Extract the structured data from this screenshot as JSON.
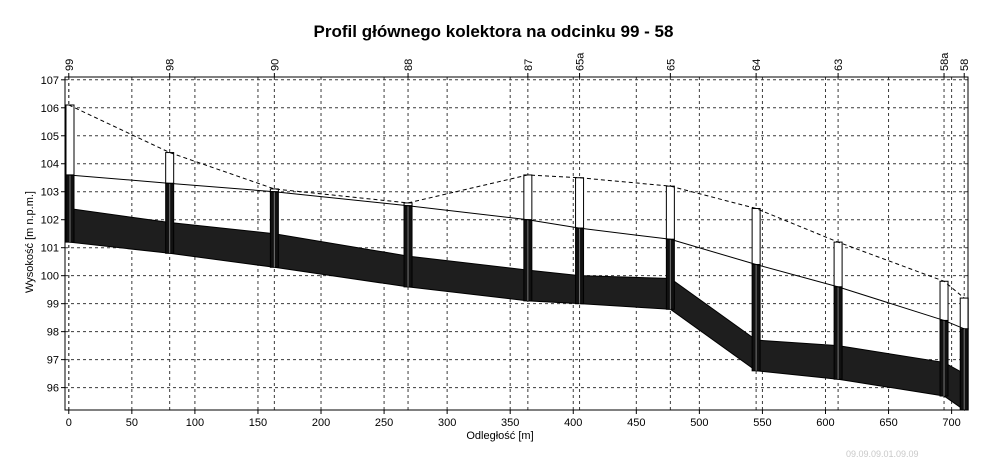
{
  "chart_data": {
    "type": "line",
    "title": "Profil głównego kolektora na odcinku 99 - 58",
    "xlabel": "Odległość [m]",
    "ylabel": "Wysokość [m n.p.m.]",
    "xlim": [
      -3,
      713
    ],
    "ylim": [
      95.2,
      107.1
    ],
    "x_ticks": [
      0,
      50,
      100,
      150,
      200,
      250,
      300,
      350,
      400,
      450,
      500,
      550,
      600,
      650,
      700
    ],
    "y_ticks": [
      96,
      97,
      98,
      99,
      100,
      101,
      102,
      103,
      104,
      105,
      106,
      107
    ],
    "grid": true,
    "wells": [
      {
        "name": "99",
        "x": 0,
        "top": 106.1
      },
      {
        "name": "98",
        "x": 80,
        "top": 104.4
      },
      {
        "name": "90",
        "x": 163,
        "top": 103.1
      },
      {
        "name": "88",
        "x": 269,
        "top": 102.6
      },
      {
        "name": "87",
        "x": 364,
        "top": 103.6
      },
      {
        "name": "65a",
        "x": 405,
        "top": 103.5
      },
      {
        "name": "65",
        "x": 477,
        "top": 103.2
      },
      {
        "name": "64",
        "x": 545,
        "top": 102.4
      },
      {
        "name": "63",
        "x": 610,
        "top": 101.2
      },
      {
        "name": "58a",
        "x": 694,
        "top": 99.8
      },
      {
        "name": "58",
        "x": 710,
        "top": 99.2
      }
    ],
    "series": [
      {
        "name": "",
        "style": "dashed",
        "x": [
          0,
          80,
          163,
          269,
          364,
          405,
          477,
          545,
          610,
          694,
          710
        ],
        "values": [
          106.1,
          104.4,
          103.1,
          102.6,
          103.6,
          103.5,
          103.2,
          102.4,
          101.2,
          99.8,
          99.2
        ]
      },
      {
        "name": "",
        "style": "solid",
        "x": [
          0,
          80,
          163,
          269,
          364,
          405,
          477,
          545,
          610,
          694,
          710
        ],
        "values": [
          103.6,
          103.3,
          103.0,
          102.5,
          102.0,
          101.7,
          101.3,
          100.4,
          99.6,
          98.4,
          98.1
        ]
      },
      {
        "name": "",
        "style": "band_top",
        "x": [
          0,
          80,
          163,
          269,
          364,
          405,
          477,
          545,
          610,
          694,
          710
        ],
        "values": [
          102.4,
          101.9,
          101.5,
          100.7,
          100.2,
          100.0,
          99.9,
          97.7,
          97.5,
          96.9,
          96.5
        ]
      },
      {
        "name": "",
        "style": "band_bottom",
        "x": [
          0,
          80,
          163,
          269,
          364,
          405,
          477,
          545,
          610,
          694,
          710
        ],
        "values": [
          101.2,
          100.8,
          100.3,
          99.6,
          99.1,
          99.0,
          98.8,
          96.6,
          96.3,
          95.7,
          95.2
        ]
      }
    ],
    "colors": {
      "band": "#1e1e1e",
      "well_fill": "#ffffff",
      "grid": "#3a3a3a"
    }
  },
  "footer": {
    "stamp": "09.09.09.01.09.09"
  }
}
